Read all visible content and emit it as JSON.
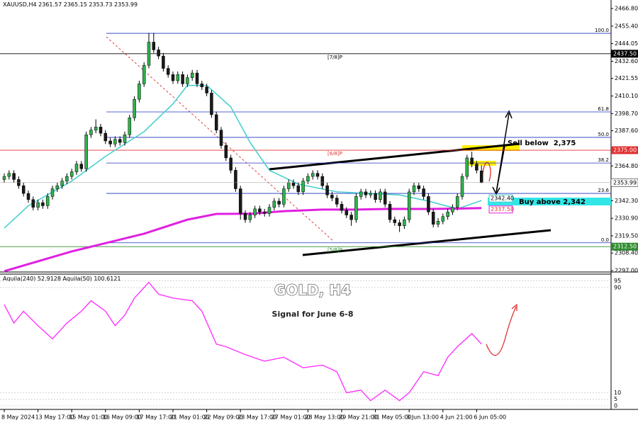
{
  "chart_data": {
    "type": "candlestick",
    "symbol": "XAUUSD,H4",
    "title": "GOLD, H4",
    "subtitle": "Signal for June 6-8",
    "up_color": "#2fb24c",
    "down_color": "#1a1a1a",
    "categories": [
      "8 May 2024",
      null,
      null,
      null,
      null,
      null,
      null,
      "13 May 17:00",
      null,
      null,
      null,
      null,
      null,
      null,
      "15 May 01:00",
      null,
      null,
      null,
      null,
      null,
      null,
      "16 May 09:00",
      null,
      null,
      null,
      null,
      null,
      null,
      "17 May 17:00",
      null,
      null,
      null,
      null,
      null,
      null,
      "21 May 01:00",
      null,
      null,
      null,
      null,
      null,
      null,
      "22 May 09:00",
      null,
      null,
      null,
      null,
      null,
      null,
      "23 May 17:00",
      null,
      null,
      null,
      null,
      null,
      null,
      "27 May 01:00",
      null,
      null,
      null,
      null,
      null,
      null,
      "28 May 13:00",
      null,
      null,
      null,
      null,
      null,
      null,
      "29 May 21:00",
      null,
      null,
      null,
      null,
      null,
      null,
      "31 May 05:00",
      null,
      null,
      null,
      null,
      null,
      null,
      "3 Jun 13:00",
      null,
      null,
      null,
      null,
      null,
      null,
      "4 Jun 21:00",
      null,
      null,
      null,
      null,
      null,
      null,
      "6 Jun 05:00",
      null
    ],
    "candles": [
      [
        2356,
        2360,
        2354,
        2358
      ],
      [
        2358,
        2362,
        2356,
        2360
      ],
      [
        2360,
        2362,
        2354,
        2356
      ],
      [
        2356,
        2358,
        2350,
        2352
      ],
      [
        2352,
        2354,
        2345,
        2347
      ],
      [
        2347,
        2349,
        2341,
        2343
      ],
      [
        2343,
        2345,
        2336,
        2338
      ],
      [
        2338,
        2343,
        2336,
        2341
      ],
      [
        2341,
        2343,
        2337,
        2339
      ],
      [
        2339,
        2347,
        2337,
        2345
      ],
      [
        2345,
        2352,
        2343,
        2350
      ],
      [
        2350,
        2354,
        2348,
        2352
      ],
      [
        2352,
        2357,
        2350,
        2355
      ],
      [
        2355,
        2360,
        2353,
        2358
      ],
      [
        2358,
        2363,
        2356,
        2361
      ],
      [
        2361,
        2368,
        2359,
        2366
      ],
      [
        2366,
        2368,
        2361,
        2363
      ],
      [
        2363,
        2387,
        2361,
        2385
      ],
      [
        2385,
        2390,
        2383,
        2388
      ],
      [
        2388,
        2395,
        2386,
        2390
      ],
      [
        2390,
        2392,
        2384,
        2386
      ],
      [
        2386,
        2388,
        2379,
        2381
      ],
      [
        2381,
        2383,
        2377,
        2379
      ],
      [
        2379,
        2384,
        2377,
        2382
      ],
      [
        2382,
        2384,
        2378,
        2380
      ],
      [
        2380,
        2387,
        2378,
        2385
      ],
      [
        2385,
        2398,
        2383,
        2396
      ],
      [
        2396,
        2410,
        2394,
        2408
      ],
      [
        2408,
        2420,
        2406,
        2418
      ],
      [
        2418,
        2432,
        2416,
        2430
      ],
      [
        2430,
        2451,
        2428,
        2445
      ],
      [
        2445,
        2451,
        2438,
        2440
      ],
      [
        2440,
        2442,
        2434,
        2436
      ],
      [
        2436,
        2438,
        2426,
        2428
      ],
      [
        2428,
        2430,
        2422,
        2424
      ],
      [
        2424,
        2426,
        2418,
        2420
      ],
      [
        2420,
        2426,
        2418,
        2424
      ],
      [
        2424,
        2426,
        2416,
        2418
      ],
      [
        2418,
        2424,
        2416,
        2422
      ],
      [
        2422,
        2427,
        2420,
        2425
      ],
      [
        2425,
        2427,
        2416,
        2418
      ],
      [
        2418,
        2420,
        2414,
        2416
      ],
      [
        2416,
        2418,
        2410,
        2412
      ],
      [
        2412,
        2414,
        2396,
        2398
      ],
      [
        2398,
        2400,
        2386,
        2388
      ],
      [
        2388,
        2390,
        2376,
        2378
      ],
      [
        2378,
        2380,
        2368,
        2370
      ],
      [
        2370,
        2372,
        2360,
        2362
      ],
      [
        2362,
        2364,
        2348,
        2350
      ],
      [
        2350,
        2352,
        2330,
        2334
      ],
      [
        2334,
        2336,
        2328,
        2330
      ],
      [
        2330,
        2335,
        2328,
        2333
      ],
      [
        2333,
        2339,
        2331,
        2337
      ],
      [
        2337,
        2339,
        2333,
        2335
      ],
      [
        2335,
        2337,
        2332,
        2334
      ],
      [
        2334,
        2340,
        2332,
        2338
      ],
      [
        2338,
        2344,
        2336,
        2342
      ],
      [
        2342,
        2344,
        2338,
        2340
      ],
      [
        2340,
        2352,
        2338,
        2350
      ],
      [
        2350,
        2356,
        2348,
        2354
      ],
      [
        2354,
        2356,
        2350,
        2352
      ],
      [
        2352,
        2354,
        2346,
        2348
      ],
      [
        2348,
        2357,
        2346,
        2355
      ],
      [
        2355,
        2360,
        2353,
        2358
      ],
      [
        2358,
        2362,
        2356,
        2360
      ],
      [
        2360,
        2362,
        2356,
        2358
      ],
      [
        2358,
        2360,
        2350,
        2352
      ],
      [
        2352,
        2354,
        2344,
        2346
      ],
      [
        2346,
        2348,
        2342,
        2344
      ],
      [
        2344,
        2346,
        2338,
        2340
      ],
      [
        2340,
        2342,
        2334,
        2336
      ],
      [
        2336,
        2338,
        2331,
        2333
      ],
      [
        2333,
        2335,
        2326,
        2330
      ],
      [
        2330,
        2347,
        2328,
        2345
      ],
      [
        2345,
        2350,
        2343,
        2348
      ],
      [
        2348,
        2350,
        2344,
        2346
      ],
      [
        2346,
        2349,
        2344,
        2347
      ],
      [
        2347,
        2349,
        2341,
        2343
      ],
      [
        2343,
        2350,
        2341,
        2348
      ],
      [
        2348,
        2350,
        2338,
        2340
      ],
      [
        2340,
        2342,
        2328,
        2330
      ],
      [
        2330,
        2332,
        2326,
        2328
      ],
      [
        2328,
        2330,
        2322,
        2326
      ],
      [
        2326,
        2332,
        2324,
        2330
      ],
      [
        2330,
        2350,
        2328,
        2348
      ],
      [
        2348,
        2354,
        2346,
        2352
      ],
      [
        2352,
        2354,
        2348,
        2350
      ],
      [
        2350,
        2352,
        2343,
        2345
      ],
      [
        2345,
        2347,
        2333,
        2335
      ],
      [
        2335,
        2337,
        2325,
        2327
      ],
      [
        2327,
        2331,
        2325,
        2329
      ],
      [
        2329,
        2334,
        2327,
        2332
      ],
      [
        2332,
        2337,
        2330,
        2335
      ],
      [
        2335,
        2340,
        2333,
        2338
      ],
      [
        2338,
        2347,
        2336,
        2345
      ],
      [
        2345,
        2360,
        2343,
        2358
      ],
      [
        2358,
        2372,
        2356,
        2370
      ],
      [
        2370,
        2374,
        2364,
        2366
      ],
      [
        2366,
        2368,
        2360,
        2362
      ],
      [
        2361.57,
        2365.15,
        2353.73,
        2353.99
      ]
    ],
    "ylim": [
      2297.0,
      2466.8
    ],
    "yticks": [
      {
        "value": 2466.8,
        "label": "2466.80"
      },
      {
        "value": 2455.4,
        "label": "2455.40"
      },
      {
        "value": 2444.05,
        "label": "2444.05"
      },
      {
        "value": 2432.6,
        "label": "2432.60"
      },
      {
        "value": 2421.55,
        "label": "2421.55"
      },
      {
        "value": 2410.1,
        "label": "2410.10"
      },
      {
        "value": 2398.7,
        "label": "2398.70"
      },
      {
        "value": 2387.6,
        "label": "2387.60"
      },
      {
        "value": 2364.8,
        "label": "2364.80"
      },
      {
        "value": 2342.3,
        "label": "2342.30"
      },
      {
        "value": 2330.9,
        "label": "2330.90"
      },
      {
        "value": 2319.5,
        "label": "2319.50"
      },
      {
        "value": 2308.4,
        "label": "2308.40"
      },
      {
        "value": 2297.0,
        "label": "2297.00"
      }
    ],
    "levels": [
      {
        "value": 2437.5,
        "label": "2437.50",
        "tag": "[7/8]P",
        "color": "#000000"
      },
      {
        "value": 2375.0,
        "label": "2375.00",
        "tag": "[6/8]P",
        "color": "#e03030"
      },
      {
        "value": 2312.5,
        "label": "2312.50",
        "tag": "[5/8]P",
        "color": "#2e8b2e"
      }
    ],
    "fib_color": "#2230c0",
    "fib_levels": [
      {
        "label": "100.0",
        "value": 2450.7
      },
      {
        "label": "61.8",
        "value": 2399.8
      },
      {
        "label": "50.0",
        "value": 2383.3
      },
      {
        "label": "38.2",
        "value": 2366.7
      },
      {
        "label": "23.6",
        "value": 2347.0
      },
      {
        "label": "0.0",
        "value": 2315.0
      }
    ],
    "ma": [
      {
        "color": "#48d0d0",
        "x": [
          0,
          5,
          14,
          21,
          29,
          35,
          38,
          42,
          47,
          51,
          55,
          61,
          69,
          76,
          82,
          88,
          94,
          99
        ],
        "values": [
          2324.5,
          2339,
          2355,
          2371,
          2387,
          2405,
          2417,
          2417,
          2403,
          2380,
          2362,
          2353,
          2348,
          2347,
          2346,
          2342,
          2337,
          2342.4
        ],
        "value_labels": [
          null,
          null,
          null,
          null,
          null,
          null,
          null,
          null,
          null,
          null,
          null,
          null,
          null,
          null,
          null,
          null,
          null,
          "2342.40"
        ]
      },
      {
        "color": "#e020e0",
        "x": [
          0,
          14,
          29,
          38,
          44,
          51,
          58,
          66,
          73,
          80,
          88,
          95,
          99
        ],
        "values": [
          2296.6,
          2309.4,
          2320.9,
          2330,
          2333.7,
          2333.8,
          2335.5,
          2336.5,
          2336.5,
          2337,
          2336.9,
          2337.2,
          2337.5
        ],
        "value_labels": [
          null,
          null,
          null,
          null,
          null,
          null,
          null,
          null,
          null,
          null,
          null,
          null,
          "2337.50"
        ]
      }
    ],
    "annotations": [
      "Sell below  2,375",
      "Buy above 2,342"
    ],
    "indicator": {
      "ylim": [
        0,
        100
      ],
      "yticks": [
        0,
        5,
        10,
        90,
        95
      ],
      "series": [
        {
          "name": "Aquila(240)",
          "value": 52.9128,
          "color": "#ff33ff",
          "x": [
            0,
            2,
            4,
            7,
            10,
            13,
            16,
            18,
            21,
            23,
            25,
            27,
            30,
            32,
            35,
            39,
            41,
            44,
            46,
            50,
            54,
            58,
            62,
            66,
            69,
            71,
            74,
            76,
            79,
            82,
            84,
            87,
            90,
            92,
            94,
            97,
            99
          ],
          "values": [
            77,
            63,
            72,
            61,
            51,
            63,
            72,
            80,
            72,
            61,
            69,
            82,
            94,
            85,
            82,
            80,
            72,
            47,
            45,
            39,
            34,
            37,
            29,
            31,
            26,
            10,
            12,
            4,
            12,
            4,
            10,
            26,
            23,
            37,
            45,
            55,
            47
          ]
        },
        {
          "name": "Aquila(50)",
          "value": 100.6121
        }
      ]
    }
  }
}
